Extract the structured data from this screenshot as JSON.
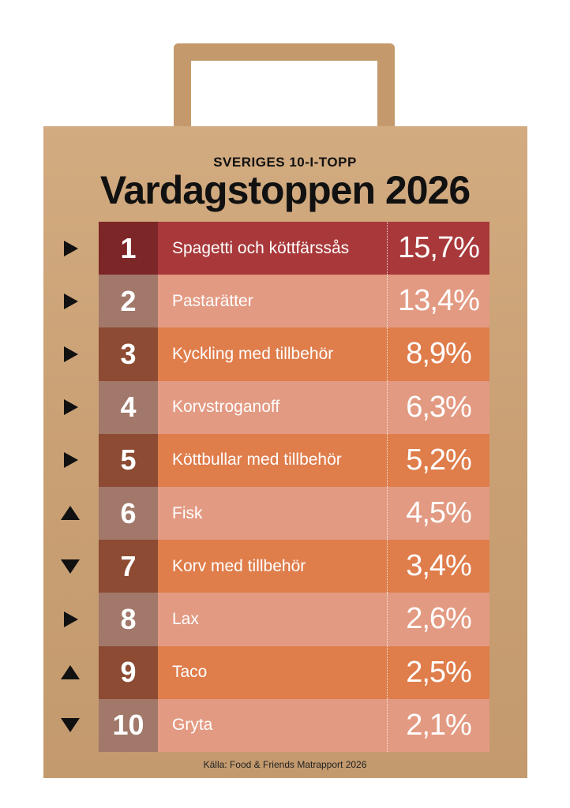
{
  "header": {
    "kicker": "SVERIGES 10-I-TOPP",
    "title": "Vardagstoppen 2026"
  },
  "table": {
    "rows": [
      {
        "rank": "1",
        "dish": "Spagetti och köttfärssås",
        "share": "15,7%",
        "trend": "same"
      },
      {
        "rank": "2",
        "dish": "Pastarätter",
        "share": "13,4%",
        "trend": "same"
      },
      {
        "rank": "3",
        "dish": "Kyckling med tillbehör",
        "share": "8,9%",
        "trend": "same"
      },
      {
        "rank": "4",
        "dish": "Korvstroganoff",
        "share": "6,3%",
        "trend": "same"
      },
      {
        "rank": "5",
        "dish": "Köttbullar med tillbehör",
        "share": "5,2%",
        "trend": "same"
      },
      {
        "rank": "6",
        "dish": "Fisk",
        "share": "4,5%",
        "trend": "up"
      },
      {
        "rank": "7",
        "dish": "Korv med tillbehör",
        "share": "3,4%",
        "trend": "down"
      },
      {
        "rank": "8",
        "dish": "Lax",
        "share": "2,6%",
        "trend": "same"
      },
      {
        "rank": "9",
        "dish": "Taco",
        "share": "2,5%",
        "trend": "up"
      },
      {
        "rank": "10",
        "dish": "Gryta",
        "share": "2,1%",
        "trend": "down"
      }
    ]
  },
  "footer": {
    "source": "Källa: Food & Friends Matrapport 2026"
  }
}
